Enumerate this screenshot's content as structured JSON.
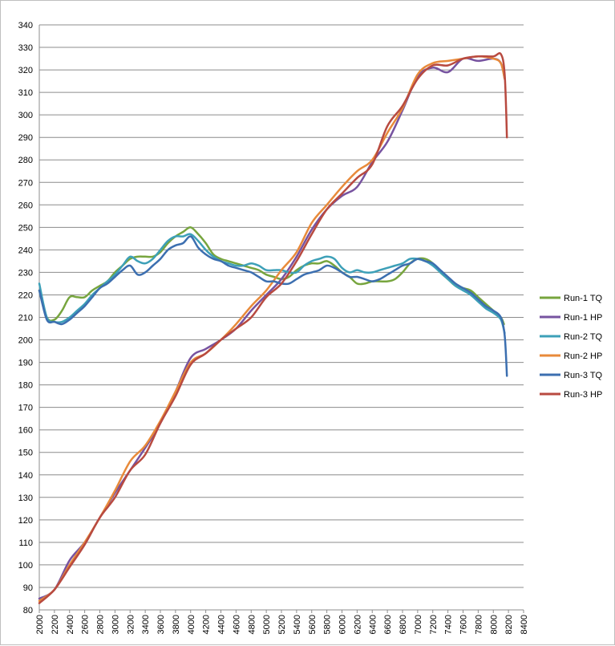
{
  "chart_data": {
    "type": "line",
    "xlim": [
      2000,
      8400
    ],
    "ylim": [
      80,
      340
    ],
    "x_ticks": [
      2000,
      2200,
      2400,
      2600,
      2800,
      3000,
      3200,
      3400,
      3600,
      3800,
      4000,
      4200,
      4400,
      4600,
      4800,
      5000,
      5200,
      5400,
      5600,
      5800,
      6000,
      6200,
      6400,
      6600,
      6800,
      7000,
      7200,
      7400,
      7600,
      7800,
      8000,
      8200,
      8400
    ],
    "y_ticks": [
      80,
      90,
      100,
      110,
      120,
      130,
      140,
      150,
      160,
      170,
      180,
      190,
      200,
      210,
      220,
      230,
      240,
      250,
      260,
      270,
      280,
      290,
      300,
      310,
      320,
      330,
      340
    ],
    "grid": "horizontal",
    "legend_position": "right",
    "series": [
      {
        "name": "Run-1 TQ",
        "color": "#77a53e",
        "x": [
          2000,
          2100,
          2200,
          2300,
          2400,
          2500,
          2600,
          2700,
          2800,
          2900,
          3000,
          3100,
          3200,
          3300,
          3400,
          3500,
          3600,
          3700,
          3800,
          3900,
          4000,
          4100,
          4200,
          4300,
          4400,
          4500,
          4600,
          4700,
          4800,
          4900,
          5000,
          5100,
          5200,
          5300,
          5400,
          5500,
          5600,
          5700,
          5800,
          5900,
          6000,
          6100,
          6200,
          6300,
          6400,
          6500,
          6600,
          6700,
          6800,
          6900,
          7000,
          7100,
          7200,
          7300,
          7400,
          7500,
          7600,
          7700,
          7800,
          7900,
          8000,
          8100,
          8140
        ],
        "y": [
          222,
          210,
          209,
          213,
          219,
          219,
          219,
          222,
          224,
          226,
          230,
          233,
          236,
          237,
          237,
          237,
          239,
          243,
          246,
          248,
          250,
          247,
          243,
          238,
          236,
          235,
          234,
          233,
          232,
          231,
          229,
          228,
          227,
          228,
          231,
          233,
          234,
          234,
          235,
          233,
          230,
          228,
          225,
          225,
          226,
          226,
          226,
          227,
          230,
          234,
          236,
          236,
          234,
          230,
          227,
          224,
          223,
          222,
          219,
          216,
          213,
          210,
          207
        ]
      },
      {
        "name": "Run-1 HP",
        "color": "#7753a0",
        "x": [
          2000,
          2200,
          2400,
          2600,
          2800,
          3000,
          3200,
          3400,
          3600,
          3800,
          4000,
          4200,
          4400,
          4600,
          4800,
          5000,
          5200,
          5400,
          5600,
          5800,
          6000,
          6200,
          6400,
          6600,
          6800,
          7000,
          7200,
          7400,
          7600,
          7800,
          8000,
          8100,
          8150
        ],
        "y": [
          85,
          89,
          102,
          110,
          121,
          132,
          142,
          152,
          163,
          177,
          192,
          196,
          200,
          205,
          213,
          220,
          227,
          237,
          249,
          258,
          264,
          268,
          279,
          288,
          302,
          317,
          321,
          319,
          325,
          324,
          325,
          323,
          316
        ]
      },
      {
        "name": "Run-2 TQ",
        "color": "#3da0b8",
        "x": [
          2000,
          2100,
          2200,
          2300,
          2400,
          2500,
          2600,
          2700,
          2800,
          2900,
          3000,
          3100,
          3200,
          3300,
          3400,
          3500,
          3600,
          3700,
          3800,
          3900,
          4000,
          4100,
          4200,
          4300,
          4400,
          4500,
          4600,
          4700,
          4800,
          4900,
          5000,
          5100,
          5200,
          5300,
          5400,
          5500,
          5600,
          5700,
          5800,
          5900,
          6000,
          6100,
          6200,
          6300,
          6400,
          6500,
          6600,
          6700,
          6800,
          6900,
          7000,
          7100,
          7200,
          7300,
          7400,
          7500,
          7600,
          7700,
          7800,
          7900,
          8000,
          8100,
          8150
        ],
        "y": [
          225,
          210,
          208,
          208,
          210,
          213,
          216,
          220,
          223,
          226,
          229,
          233,
          237,
          235,
          234,
          236,
          240,
          244,
          246,
          246,
          247,
          244,
          240,
          237,
          235,
          234,
          233,
          233,
          234,
          233,
          231,
          231,
          231,
          230,
          230,
          233,
          235,
          236,
          237,
          236,
          232,
          230,
          231,
          230,
          230,
          231,
          232,
          233,
          234,
          236,
          236,
          235,
          233,
          230,
          227,
          224,
          222,
          220,
          217,
          214,
          212,
          209,
          203
        ]
      },
      {
        "name": "Run-2 HP",
        "color": "#e88a3a",
        "x": [
          2000,
          2200,
          2400,
          2600,
          2800,
          3000,
          3200,
          3400,
          3600,
          3800,
          4000,
          4200,
          4400,
          4600,
          4800,
          5000,
          5200,
          5400,
          5600,
          5800,
          6000,
          6200,
          6400,
          6600,
          6800,
          7000,
          7200,
          7400,
          7600,
          7800,
          8000,
          8100,
          8150
        ],
        "y": [
          84,
          89,
          100,
          110,
          121,
          133,
          146,
          153,
          164,
          177,
          190,
          194,
          200,
          207,
          215,
          222,
          231,
          239,
          252,
          260,
          268,
          275,
          280,
          292,
          303,
          318,
          323,
          324,
          325,
          326,
          325,
          323,
          316
        ]
      },
      {
        "name": "Run-3 TQ",
        "color": "#3c6fb0",
        "x": [
          2000,
          2100,
          2200,
          2300,
          2400,
          2500,
          2600,
          2700,
          2800,
          2900,
          3000,
          3100,
          3200,
          3300,
          3400,
          3500,
          3600,
          3700,
          3800,
          3900,
          4000,
          4100,
          4200,
          4300,
          4400,
          4500,
          4600,
          4700,
          4800,
          4900,
          5000,
          5100,
          5200,
          5300,
          5400,
          5500,
          5600,
          5700,
          5800,
          5900,
          6000,
          6100,
          6200,
          6300,
          6400,
          6500,
          6600,
          6700,
          6800,
          6900,
          7000,
          7100,
          7200,
          7300,
          7400,
          7500,
          7600,
          7700,
          7800,
          7900,
          8000,
          8100,
          8150,
          8180
        ],
        "y": [
          222,
          209,
          208,
          207,
          209,
          212,
          215,
          219,
          223,
          225,
          228,
          231,
          233,
          229,
          230,
          233,
          236,
          240,
          242,
          243,
          246,
          241,
          238,
          236,
          235,
          233,
          232,
          231,
          230,
          228,
          226,
          226,
          225,
          225,
          227,
          229,
          230,
          231,
          233,
          232,
          230,
          228,
          228,
          227,
          226,
          227,
          229,
          231,
          233,
          234,
          236,
          235,
          234,
          231,
          228,
          225,
          223,
          221,
          218,
          215,
          213,
          210,
          202,
          184
        ]
      },
      {
        "name": "Run-3 HP",
        "color": "#b84a40",
        "x": [
          2000,
          2200,
          2400,
          2600,
          2800,
          3000,
          3200,
          3400,
          3600,
          3800,
          4000,
          4200,
          4400,
          4600,
          4800,
          5000,
          5200,
          5400,
          5600,
          5800,
          6000,
          6200,
          6400,
          6600,
          6800,
          7000,
          7200,
          7400,
          7600,
          7800,
          8000,
          8100,
          8150,
          8180
        ],
        "y": [
          83,
          89,
          99,
          109,
          121,
          130,
          142,
          149,
          163,
          175,
          189,
          194,
          200,
          205,
          210,
          219,
          225,
          235,
          247,
          258,
          265,
          272,
          278,
          295,
          304,
          316,
          322,
          322,
          325,
          326,
          326,
          327,
          318,
          290
        ]
      }
    ]
  }
}
